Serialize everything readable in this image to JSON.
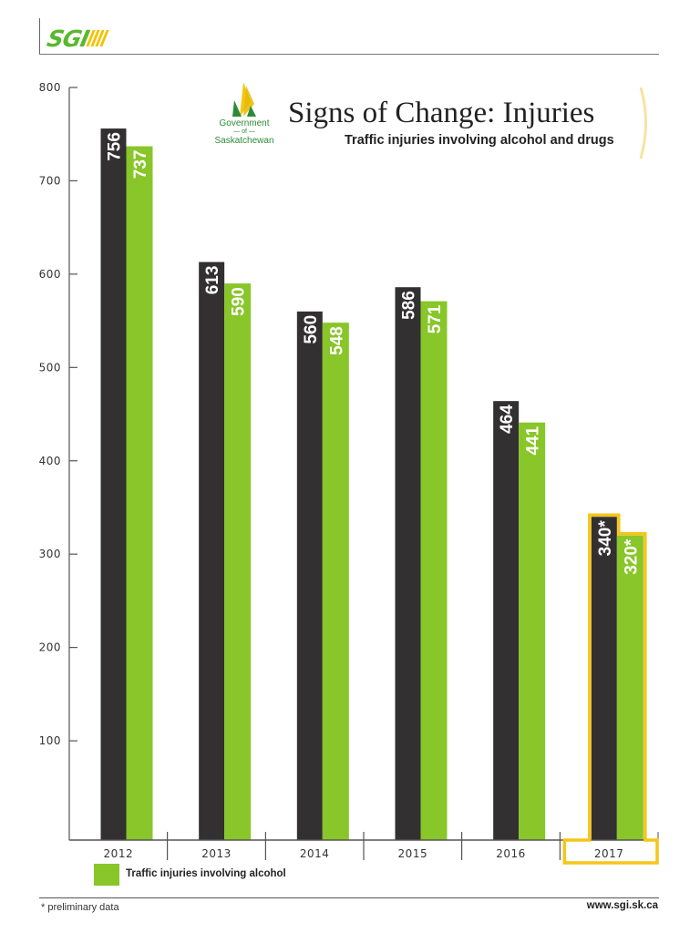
{
  "header": {
    "brand_logo_text": "SGI",
    "government_logo": {
      "line1": "Government",
      "line2": "of",
      "line3": "Saskatchewan"
    },
    "title": "Signs of Change: Injuries",
    "subtitle": "Traffic injuries involving alcohol and drugs"
  },
  "colors": {
    "dark_series": "#323031",
    "green_series": "#88c629",
    "highlight": "#f5c518",
    "brand_green": "#5ab82e",
    "brand_yellow": "#f2c300"
  },
  "chart_data": {
    "type": "bar",
    "title": "Signs of Change: Injuries",
    "subtitle": "Traffic injuries involving alcohol and drugs",
    "xlabel": "",
    "ylabel": "",
    "categories": [
      "2012",
      "2013",
      "2014",
      "2015",
      "2016",
      "2017"
    ],
    "series": [
      {
        "name": "Traffic injuries involving alcohol and drugs",
        "color": "#323031",
        "values": [
          756,
          613,
          560,
          586,
          464,
          340
        ],
        "labels": [
          "756",
          "613",
          "560",
          "586",
          "464",
          "340*"
        ]
      },
      {
        "name": "Traffic injuries involving alcohol",
        "color": "#88c629",
        "values": [
          737,
          590,
          548,
          571,
          441,
          320
        ],
        "labels": [
          "737",
          "590",
          "548",
          "571",
          "441",
          "320*"
        ]
      }
    ],
    "ylim": [
      0,
      800
    ],
    "yticks": [
      100,
      200,
      300,
      400,
      500,
      600,
      700,
      800
    ],
    "grid": false,
    "highlighted_category": "2017",
    "legend": [
      {
        "label": "Traffic injuries involving alcohol",
        "color": "#88c629"
      }
    ],
    "legend_position": "bottom-left"
  },
  "footer": {
    "footnote": "* preliminary data",
    "website": "www.sgi.sk.ca"
  }
}
